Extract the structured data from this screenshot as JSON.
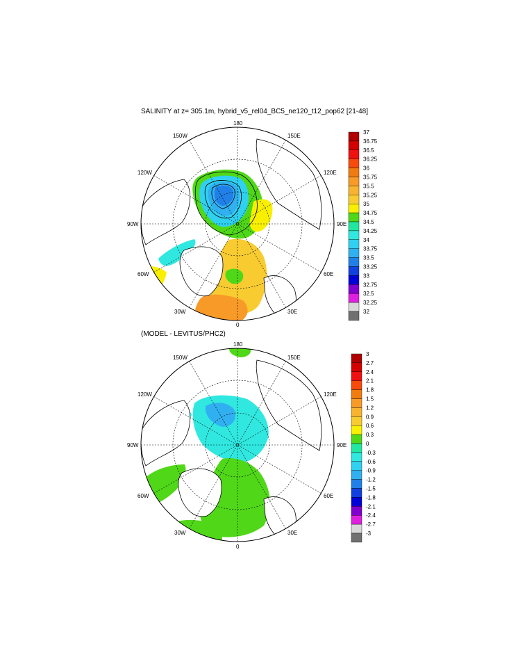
{
  "titles": {
    "top": "SALINITY at z= 305.1m, hybrid_v5_rel04_BC5_ne120_t12_pop62 [21-48]",
    "bottom": "(MODEL - LEVITUS/PHC2)"
  },
  "map_labels": {
    "n180": "180",
    "w150": "150W",
    "e150": "150E",
    "w120": "120W",
    "e120": "120E",
    "w90": "90W",
    "e90": "90E",
    "w60": "60W",
    "e60": "60E",
    "w30": "30W",
    "e30": "30E",
    "s0": "0"
  },
  "colorbar_top": {
    "labels": [
      "37",
      "36.75",
      "36.5",
      "36.25",
      "36",
      "35.75",
      "35.5",
      "35.25",
      "35",
      "34.75",
      "34.5",
      "34.25",
      "34",
      "33.75",
      "33.5",
      "33.25",
      "33",
      "32.75",
      "32.5",
      "32.25",
      "32"
    ],
    "colors": [
      "#b00000",
      "#d40000",
      "#f01010",
      "#f84a0a",
      "#f07c10",
      "#f89a28",
      "#f8b430",
      "#f8cc30",
      "#f8f000",
      "#50d818",
      "#20e8a0",
      "#30e8e0",
      "#30d0f0",
      "#30b0f0",
      "#2080e8",
      "#1040e0",
      "#0000d8",
      "#8000d0",
      "#e020e0",
      "#d8d8d8",
      "#707070"
    ]
  },
  "colorbar_bottom": {
    "labels": [
      "3",
      "2.7",
      "2.4",
      "2.1",
      "1.8",
      "1.5",
      "1.2",
      "0.9",
      "0.6",
      "0.3",
      "0",
      "-0.3",
      "-0.6",
      "-0.9",
      "-1.2",
      "-1.5",
      "-1.8",
      "-2.1",
      "-2.4",
      "-2.7",
      "-3"
    ],
    "colors": [
      "#b00000",
      "#d40000",
      "#f01010",
      "#f84a0a",
      "#f07c10",
      "#f89a28",
      "#f8b430",
      "#f8cc30",
      "#f8f000",
      "#50d818",
      "#20e8a0",
      "#30e8e0",
      "#30d0f0",
      "#30b0f0",
      "#2080e8",
      "#1040e0",
      "#0000d8",
      "#8000d0",
      "#e020e0",
      "#d8d8d8",
      "#707070"
    ]
  }
}
